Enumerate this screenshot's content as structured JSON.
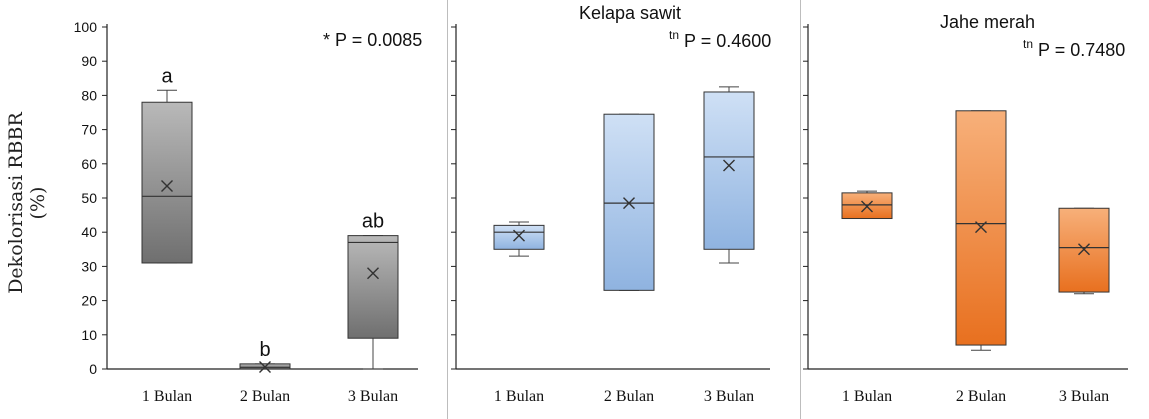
{
  "y_axis_label": "Dekolorisasi RBBR  (%)",
  "colors": {
    "panel1": "#8a8a8a",
    "panel2": "#a9c6ea",
    "panel3": "#f08a3c"
  },
  "chart_data": [
    {
      "type": "box",
      "title": "",
      "stat_prefix": "*",
      "stat_text": "P = 0.0085",
      "ylim": [
        0,
        100
      ],
      "yticks": [
        0,
        10,
        20,
        30,
        40,
        50,
        60,
        70,
        80,
        90,
        100
      ],
      "categories": [
        "1 Bulan",
        "2 Bulan",
        "3 Bulan"
      ],
      "boxes": [
        {
          "min": 31,
          "q1": 31,
          "median": 50.5,
          "q3": 78,
          "max": 81.5,
          "mean": 53.5,
          "letter": "a"
        },
        {
          "min": 0,
          "q1": 0,
          "median": 0.5,
          "q3": 1.5,
          "max": 1.5,
          "mean": 0.6,
          "letter": "b"
        },
        {
          "min": 0,
          "q1": 9,
          "median": 37,
          "q3": 39,
          "max": 39,
          "mean": 28,
          "letter": "ab"
        }
      ]
    },
    {
      "type": "box",
      "title": "Kelapa sawit",
      "stat_prefix": "tn",
      "stat_text": "P = 0.4600",
      "ylim": [
        0,
        100
      ],
      "categories": [
        "1 Bulan",
        "2 Bulan",
        "3 Bulan"
      ],
      "boxes": [
        {
          "min": 33,
          "q1": 35,
          "median": 40,
          "q3": 42,
          "max": 43,
          "mean": 39
        },
        {
          "min": 23,
          "q1": 23,
          "median": 48.5,
          "q3": 74.5,
          "max": 74.5,
          "mean": 48.5
        },
        {
          "min": 31,
          "q1": 35,
          "median": 62,
          "q3": 81,
          "max": 82.5,
          "mean": 59.5
        }
      ]
    },
    {
      "type": "box",
      "title": "Jahe merah",
      "stat_prefix": "tn",
      "stat_text": "P = 0.7480",
      "ylim": [
        0,
        100
      ],
      "categories": [
        "1 Bulan",
        "2 Bulan",
        "3 Bulan"
      ],
      "boxes": [
        {
          "min": 44,
          "q1": 44,
          "median": 48,
          "q3": 51.5,
          "max": 52,
          "mean": 47.5
        },
        {
          "min": 5.5,
          "q1": 7,
          "median": 42.5,
          "q3": 75.5,
          "max": 75.5,
          "mean": 41.5
        },
        {
          "min": 22,
          "q1": 22.5,
          "median": 35.5,
          "q3": 47,
          "max": 47,
          "mean": 35
        }
      ]
    }
  ]
}
